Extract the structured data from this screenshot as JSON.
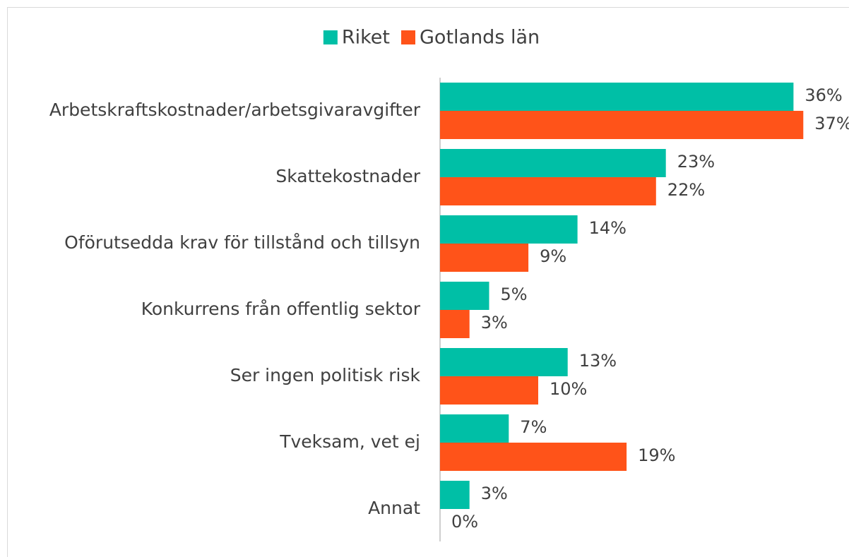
{
  "chart_data": {
    "type": "hbar",
    "categories": [
      "Arbetskraftskostnader/arbetsgivaravgifter",
      "Skattekostnader",
      "Oförutsedda krav för tillstånd och tillsyn",
      "Konkurrens från offentlig sektor",
      "Ser ingen politisk risk",
      "Tveksam, vet ej",
      "Annat"
    ],
    "series": [
      {
        "name": "Riket",
        "color": "#00bfa6",
        "values": [
          36,
          23,
          14,
          5,
          13,
          7,
          3
        ],
        "value_labels": [
          "36%",
          "23%",
          "14%",
          "5%",
          "13%",
          "7%",
          "3%"
        ]
      },
      {
        "name": "Gotlands län",
        "color": "#ff5319",
        "values": [
          37,
          22,
          9,
          3,
          10,
          19,
          0
        ],
        "value_labels": [
          "37%",
          "22%",
          "9%",
          "3%",
          "10%",
          "19%",
          "0%"
        ]
      }
    ],
    "xlim": [
      0,
      40
    ],
    "legend": "top"
  }
}
